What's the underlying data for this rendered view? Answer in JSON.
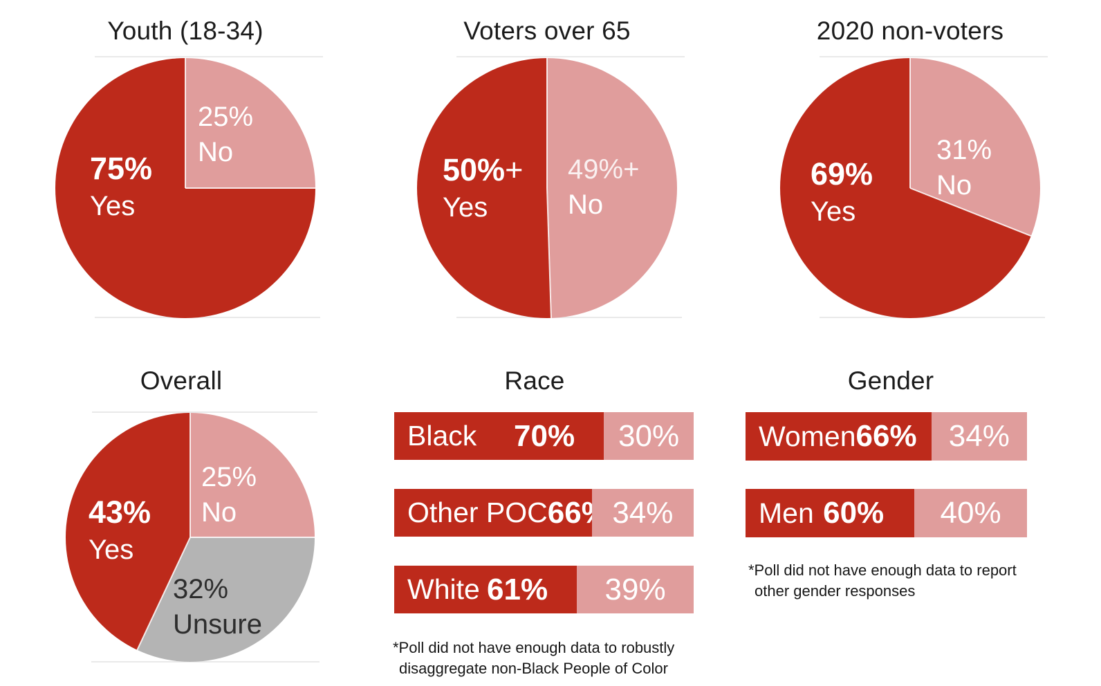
{
  "colors": {
    "yes_red": "#bd2a1b",
    "no_pink": "#e09d9c",
    "unsure_gray": "#b4b4b4",
    "title_text": "#1b1b1b",
    "footnote_text": "#161616",
    "gridline": "#e9e9e9",
    "label_on_slice": "#ffffff",
    "unsure_label_text": "#2d2d2d"
  },
  "chart_data": [
    {
      "type": "pie",
      "title": "Youth (18-34)",
      "legend_position": "inside",
      "slices": [
        {
          "label": "No",
          "value": 25,
          "display": "25%",
          "suffix": "",
          "color": "#e09d9c"
        },
        {
          "label": "Yes",
          "value": 75,
          "display": "75%",
          "suffix": "",
          "color": "#bd2a1b"
        }
      ]
    },
    {
      "type": "pie",
      "title": "Voters over 65",
      "legend_position": "inside",
      "slices": [
        {
          "label": "No",
          "value": 49,
          "display": "49%",
          "suffix": "+",
          "color": "#e09d9c"
        },
        {
          "label": "Yes",
          "value": 50,
          "display": "50%",
          "suffix": "+",
          "color": "#bd2a1b"
        }
      ]
    },
    {
      "type": "pie",
      "title": "2020 non-voters",
      "legend_position": "inside",
      "slices": [
        {
          "label": "No",
          "value": 31,
          "display": "31%",
          "suffix": "",
          "color": "#e09d9c"
        },
        {
          "label": "Yes",
          "value": 69,
          "display": "69%",
          "suffix": "",
          "color": "#bd2a1b"
        }
      ]
    },
    {
      "type": "pie",
      "title": "Overall",
      "legend_position": "inside",
      "slices": [
        {
          "label": "No",
          "value": 25,
          "display": "25%",
          "suffix": "",
          "color": "#e09d9c"
        },
        {
          "label": "Unsure",
          "value": 32,
          "display": "32%",
          "suffix": "",
          "color": "#b4b4b4"
        },
        {
          "label": "Yes",
          "value": 43,
          "display": "43%",
          "suffix": "",
          "color": "#bd2a1b"
        }
      ]
    },
    {
      "type": "bar",
      "title": "Race",
      "orientation": "horizontal-stacked",
      "x_range": [
        0,
        100
      ],
      "series_names": [
        "Yes",
        "No"
      ],
      "rows": [
        {
          "label": "Black",
          "yes": 70,
          "yes_display": "70%",
          "no": 30,
          "no_display": "30%"
        },
        {
          "label": "Other POC",
          "yes": 66,
          "yes_display": "66%",
          "no": 34,
          "no_display": "34%"
        },
        {
          "label": "White",
          "yes": 61,
          "yes_display": "61%",
          "no": 39,
          "no_display": "39%"
        }
      ],
      "footnote_line1": "*Poll did not have enough data to robustly",
      "footnote_line2": "disaggregate non-Black People of Color"
    },
    {
      "type": "bar",
      "title": "Gender",
      "orientation": "horizontal-stacked",
      "x_range": [
        0,
        100
      ],
      "series_names": [
        "Yes",
        "No"
      ],
      "rows": [
        {
          "label": "Women",
          "yes": 66,
          "yes_display": "66%",
          "no": 34,
          "no_display": "34%"
        },
        {
          "label": "Men",
          "yes": 60,
          "yes_display": "60%",
          "no": 40,
          "no_display": "40%"
        }
      ],
      "footnote_line1": "*Poll did not have enough data to report",
      "footnote_line2": "other gender responses"
    }
  ]
}
